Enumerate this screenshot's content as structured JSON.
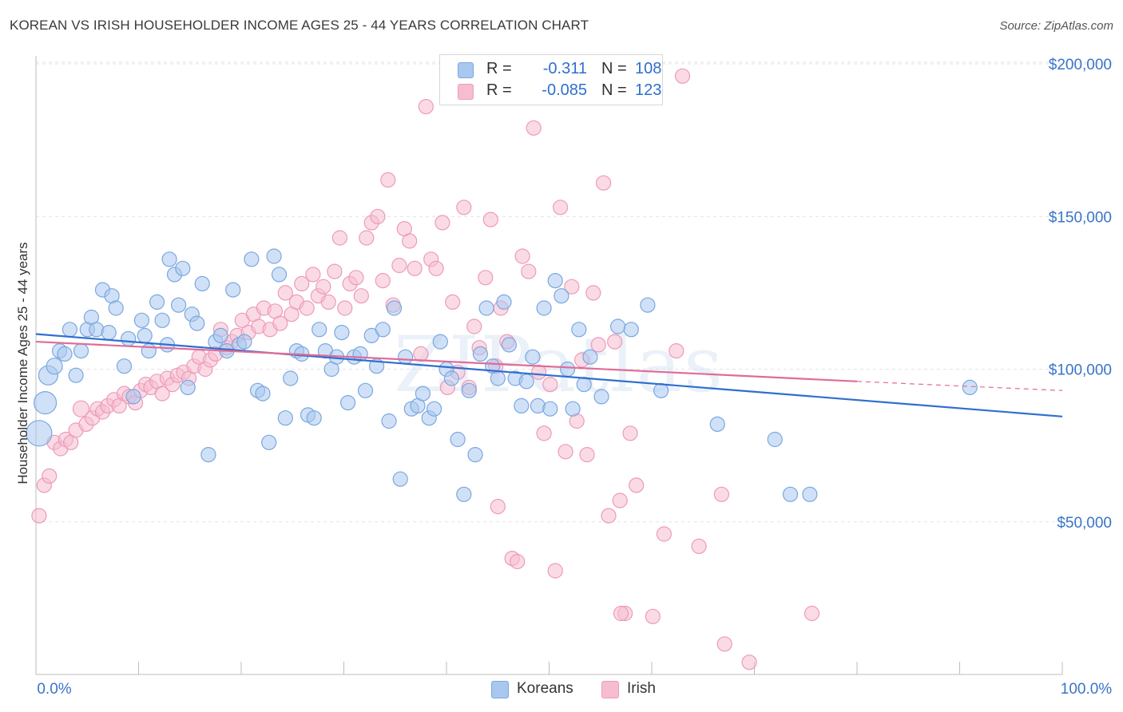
{
  "title": "KOREAN VS IRISH HOUSEHOLDER INCOME AGES 25 - 44 YEARS CORRELATION CHART",
  "source": "Source: ZipAtlas.com",
  "watermark": "ZIPatlas",
  "legend": {
    "rows": [
      {
        "r_label": "R =",
        "r_value": "-0.311",
        "n_label": "N =",
        "n_value": "108"
      },
      {
        "r_label": "R =",
        "r_value": "-0.085",
        "n_label": "N =",
        "n_value": "123"
      }
    ]
  },
  "bottom_legend": {
    "koreans": "Koreans",
    "irish": "Irish"
  },
  "colors": {
    "korean_fill": "#a9c8f0",
    "korean_stroke": "#7aa7e0",
    "korean_line": "#2f6fce",
    "irish_fill": "#f6bdd0",
    "irish_stroke": "#ee9ab8",
    "irish_line": "#e06c97",
    "tick_text": "#3a74c9",
    "grid": "#e3e3e3"
  },
  "chart_data": {
    "type": "scatter",
    "title": "KOREAN VS IRISH HOUSEHOLDER INCOME AGES 25 - 44 YEARS CORRELATION CHART",
    "xlabel": "",
    "ylabel": "Householder Income Ages 25 - 44 years",
    "xlim": [
      0,
      100
    ],
    "ylim": [
      0,
      205000
    ],
    "x_tick_labels": [
      "0.0%",
      "100.0%"
    ],
    "y_ticks": [
      50000,
      100000,
      150000,
      200000
    ],
    "y_tick_labels": [
      "$50,000",
      "$100,000",
      "$150,000",
      "$200,000"
    ],
    "grid": true,
    "legend_position": "top-center",
    "series": [
      {
        "name": "Koreans",
        "r": -0.311,
        "n": 108,
        "trend": {
          "x": [
            0,
            100
          ],
          "y": [
            111500,
            84500
          ]
        },
        "points": [
          [
            0.3,
            79000,
            16
          ],
          [
            0.9,
            89000,
            14
          ],
          [
            1.2,
            98000,
            12
          ],
          [
            1.8,
            101000,
            10
          ],
          [
            2.3,
            106000,
            9
          ],
          [
            2.8,
            105000,
            9
          ],
          [
            3.3,
            113000,
            9
          ],
          [
            3.9,
            98000,
            9
          ],
          [
            4.4,
            106000,
            9
          ],
          [
            5.0,
            113000,
            9
          ],
          [
            5.4,
            117000,
            9
          ],
          [
            5.9,
            113000,
            9
          ],
          [
            6.5,
            126000,
            9
          ],
          [
            7.1,
            112000,
            9
          ],
          [
            7.4,
            124000,
            9
          ],
          [
            7.8,
            120000,
            9
          ],
          [
            8.6,
            101000,
            9
          ],
          [
            9.0,
            110000,
            9
          ],
          [
            9.5,
            91000,
            9
          ],
          [
            10.3,
            116000,
            9
          ],
          [
            10.6,
            111000,
            9
          ],
          [
            11.0,
            106000,
            9
          ],
          [
            11.8,
            122000,
            9
          ],
          [
            12.3,
            116000,
            9
          ],
          [
            12.8,
            108000,
            9
          ],
          [
            13.0,
            136000,
            9
          ],
          [
            13.5,
            131000,
            9
          ],
          [
            13.9,
            121000,
            9
          ],
          [
            14.3,
            133000,
            9
          ],
          [
            14.8,
            94000,
            9
          ],
          [
            15.2,
            118000,
            9
          ],
          [
            15.7,
            115000,
            9
          ],
          [
            16.2,
            128000,
            9
          ],
          [
            16.8,
            72000,
            9
          ],
          [
            17.5,
            109000,
            9
          ],
          [
            18.0,
            111000,
            9
          ],
          [
            18.6,
            106000,
            9
          ],
          [
            19.2,
            126000,
            9
          ],
          [
            19.8,
            108000,
            9
          ],
          [
            20.3,
            109000,
            9
          ],
          [
            21.0,
            136000,
            9
          ],
          [
            21.6,
            93000,
            9
          ],
          [
            22.1,
            92000,
            9
          ],
          [
            22.7,
            76000,
            9
          ],
          [
            23.2,
            137000,
            9
          ],
          [
            23.7,
            131000,
            9
          ],
          [
            24.3,
            84000,
            9
          ],
          [
            24.8,
            97000,
            9
          ],
          [
            25.4,
            106000,
            9
          ],
          [
            25.9,
            105000,
            9
          ],
          [
            26.5,
            85000,
            9
          ],
          [
            27.1,
            84000,
            9
          ],
          [
            27.6,
            113000,
            9
          ],
          [
            28.2,
            106000,
            9
          ],
          [
            28.8,
            100000,
            9
          ],
          [
            29.3,
            104000,
            9
          ],
          [
            29.8,
            112000,
            9
          ],
          [
            30.4,
            89000,
            9
          ],
          [
            31.0,
            104000,
            9
          ],
          [
            31.6,
            105000,
            9
          ],
          [
            32.1,
            93000,
            9
          ],
          [
            32.7,
            111000,
            9
          ],
          [
            33.2,
            101000,
            9
          ],
          [
            33.8,
            113000,
            9
          ],
          [
            34.4,
            83000,
            9
          ],
          [
            34.9,
            120000,
            9
          ],
          [
            35.5,
            64000,
            9
          ],
          [
            36.0,
            104000,
            9
          ],
          [
            36.6,
            87000,
            9
          ],
          [
            37.2,
            88000,
            9
          ],
          [
            37.7,
            92000,
            9
          ],
          [
            38.3,
            84000,
            9
          ],
          [
            38.8,
            87000,
            9
          ],
          [
            39.4,
            109000,
            9
          ],
          [
            40.0,
            100000,
            9
          ],
          [
            40.5,
            97000,
            9
          ],
          [
            41.1,
            77000,
            9
          ],
          [
            41.7,
            59000,
            9
          ],
          [
            42.2,
            93000,
            9
          ],
          [
            42.8,
            72000,
            9
          ],
          [
            43.3,
            105000,
            9
          ],
          [
            43.9,
            120000,
            9
          ],
          [
            44.5,
            101000,
            9
          ],
          [
            45.0,
            97000,
            9
          ],
          [
            45.6,
            122000,
            9
          ],
          [
            46.1,
            108000,
            9
          ],
          [
            46.7,
            97000,
            9
          ],
          [
            47.3,
            88000,
            9
          ],
          [
            47.8,
            96000,
            9
          ],
          [
            48.4,
            104000,
            9
          ],
          [
            48.9,
            88000,
            9
          ],
          [
            49.5,
            120000,
            9
          ],
          [
            50.1,
            87000,
            9
          ],
          [
            50.6,
            129000,
            9
          ],
          [
            51.2,
            124000,
            9
          ],
          [
            51.8,
            100000,
            9
          ],
          [
            52.3,
            87000,
            9
          ],
          [
            52.9,
            113000,
            9
          ],
          [
            53.4,
            95000,
            9
          ],
          [
            54.0,
            104000,
            9
          ],
          [
            55.1,
            91000,
            9
          ],
          [
            56.7,
            114000,
            9
          ],
          [
            58.0,
            113000,
            9
          ],
          [
            59.6,
            121000,
            9
          ],
          [
            60.9,
            93000,
            9
          ],
          [
            66.4,
            82000,
            9
          ],
          [
            72.0,
            77000,
            9
          ],
          [
            73.5,
            59000,
            9
          ],
          [
            75.4,
            59000,
            9
          ],
          [
            91.0,
            94000,
            9
          ]
        ]
      },
      {
        "name": "Irish",
        "r": -0.085,
        "n": 123,
        "trend": {
          "x": [
            0,
            80,
            100
          ],
          "y": [
            109000,
            96000,
            93000
          ]
        },
        "points": [
          [
            0.3,
            52000,
            9
          ],
          [
            0.8,
            62000,
            9
          ],
          [
            1.3,
            65000,
            9
          ],
          [
            1.8,
            76000,
            9
          ],
          [
            2.4,
            74000,
            9
          ],
          [
            2.9,
            77000,
            9
          ],
          [
            3.4,
            76000,
            9
          ],
          [
            3.9,
            80000,
            9
          ],
          [
            4.4,
            87000,
            10
          ],
          [
            4.9,
            82000,
            9
          ],
          [
            5.5,
            84000,
            9
          ],
          [
            6.0,
            87000,
            9
          ],
          [
            6.5,
            86000,
            9
          ],
          [
            7.0,
            88000,
            9
          ],
          [
            7.6,
            90000,
            9
          ],
          [
            8.1,
            88000,
            9
          ],
          [
            8.6,
            92000,
            9
          ],
          [
            9.1,
            91000,
            9
          ],
          [
            9.7,
            89000,
            9
          ],
          [
            10.2,
            93000,
            9
          ],
          [
            10.7,
            95000,
            9
          ],
          [
            11.2,
            94000,
            9
          ],
          [
            11.8,
            96000,
            9
          ],
          [
            12.3,
            92000,
            9
          ],
          [
            12.8,
            97000,
            9
          ],
          [
            13.3,
            95000,
            9
          ],
          [
            13.8,
            98000,
            9
          ],
          [
            14.4,
            99000,
            9
          ],
          [
            14.9,
            97000,
            9
          ],
          [
            15.4,
            101000,
            9
          ],
          [
            15.9,
            104000,
            9
          ],
          [
            16.5,
            100000,
            9
          ],
          [
            17.0,
            103000,
            9
          ],
          [
            17.5,
            105000,
            9
          ],
          [
            18.0,
            113000,
            9
          ],
          [
            18.6,
            107000,
            9
          ],
          [
            19.1,
            109000,
            9
          ],
          [
            19.6,
            111000,
            9
          ],
          [
            20.1,
            116000,
            9
          ],
          [
            20.7,
            112000,
            9
          ],
          [
            21.2,
            118000,
            9
          ],
          [
            21.7,
            114000,
            9
          ],
          [
            22.2,
            120000,
            9
          ],
          [
            22.8,
            113000,
            9
          ],
          [
            23.3,
            119000,
            9
          ],
          [
            23.8,
            115000,
            9
          ],
          [
            24.3,
            125000,
            9
          ],
          [
            24.9,
            118000,
            9
          ],
          [
            25.4,
            122000,
            9
          ],
          [
            25.9,
            128000,
            9
          ],
          [
            26.4,
            120000,
            9
          ],
          [
            27.0,
            131000,
            9
          ],
          [
            27.5,
            124000,
            9
          ],
          [
            28.0,
            127000,
            9
          ],
          [
            28.5,
            122000,
            9
          ],
          [
            29.1,
            132000,
            9
          ],
          [
            29.6,
            143000,
            9
          ],
          [
            30.1,
            120000,
            9
          ],
          [
            30.6,
            128000,
            9
          ],
          [
            31.2,
            130000,
            9
          ],
          [
            31.7,
            124000,
            9
          ],
          [
            32.2,
            143000,
            9
          ],
          [
            32.7,
            148000,
            9
          ],
          [
            33.3,
            150000,
            9
          ],
          [
            33.8,
            129000,
            9
          ],
          [
            34.3,
            162000,
            9
          ],
          [
            34.8,
            121000,
            9
          ],
          [
            35.4,
            134000,
            9
          ],
          [
            35.9,
            146000,
            9
          ],
          [
            36.4,
            142000,
            9
          ],
          [
            36.9,
            133000,
            9
          ],
          [
            37.5,
            105000,
            9
          ],
          [
            38.0,
            186000,
            9
          ],
          [
            38.5,
            136000,
            9
          ],
          [
            39.0,
            133000,
            9
          ],
          [
            39.6,
            148000,
            9
          ],
          [
            40.1,
            94000,
            9
          ],
          [
            40.6,
            122000,
            9
          ],
          [
            41.1,
            99000,
            9
          ],
          [
            41.7,
            153000,
            9
          ],
          [
            42.2,
            94000,
            9
          ],
          [
            42.7,
            114000,
            9
          ],
          [
            43.2,
            107000,
            9
          ],
          [
            43.8,
            130000,
            9
          ],
          [
            44.3,
            149000,
            9
          ],
          [
            44.8,
            101000,
            9
          ],
          [
            45.3,
            120000,
            9
          ],
          [
            45.9,
            109000,
            9
          ],
          [
            46.4,
            38000,
            9
          ],
          [
            46.9,
            37000,
            9
          ],
          [
            47.4,
            137000,
            9
          ],
          [
            48.0,
            132000,
            9
          ],
          [
            48.5,
            179000,
            9
          ],
          [
            49.0,
            99000,
            9
          ],
          [
            49.5,
            79000,
            9
          ],
          [
            50.1,
            95000,
            9
          ],
          [
            50.6,
            34000,
            9
          ],
          [
            51.1,
            153000,
            9
          ],
          [
            51.6,
            73000,
            9
          ],
          [
            52.2,
            127000,
            9
          ],
          [
            52.7,
            83000,
            9
          ],
          [
            53.2,
            103000,
            9
          ],
          [
            53.7,
            72000,
            9
          ],
          [
            54.3,
            125000,
            9
          ],
          [
            54.8,
            108000,
            9
          ],
          [
            55.3,
            161000,
            9
          ],
          [
            55.8,
            52000,
            9
          ],
          [
            56.4,
            109000,
            9
          ],
          [
            56.9,
            57000,
            9
          ],
          [
            57.4,
            20000,
            9
          ],
          [
            57.9,
            79000,
            9
          ],
          [
            58.5,
            62000,
            9
          ],
          [
            60.1,
            19000,
            9
          ],
          [
            61.2,
            46000,
            9
          ],
          [
            62.4,
            106000,
            9
          ],
          [
            63.0,
            196000,
            9
          ],
          [
            64.6,
            42000,
            9
          ],
          [
            67.1,
            10000,
            9
          ],
          [
            69.5,
            4000,
            9
          ],
          [
            75.6,
            20000,
            9
          ],
          [
            45.0,
            55000,
            9
          ],
          [
            66.8,
            59000,
            9
          ],
          [
            57.0,
            20000,
            9
          ]
        ]
      }
    ]
  }
}
